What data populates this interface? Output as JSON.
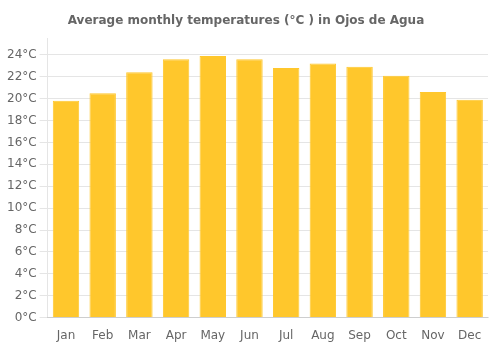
{
  "chart_data": {
    "type": "bar",
    "title": "Average monthly temperatures (°C ) in Ojos de Agua",
    "categories": [
      "Jan",
      "Feb",
      "Mar",
      "Apr",
      "May",
      "Jun",
      "Jul",
      "Aug",
      "Sep",
      "Oct",
      "Nov",
      "Dec"
    ],
    "values": [
      19.8,
      20.5,
      22.4,
      23.6,
      23.9,
      23.6,
      22.8,
      23.2,
      22.9,
      22.1,
      20.6,
      19.9
    ],
    "color": "#FFC72C",
    "ylim": [
      0,
      25.5
    ],
    "yticks": [
      {
        "value": 0,
        "label": "0°C"
      },
      {
        "value": 2,
        "label": "2°C"
      },
      {
        "value": 4,
        "label": "4°C"
      },
      {
        "value": 6,
        "label": "6°C"
      },
      {
        "value": 8,
        "label": "8°C"
      },
      {
        "value": 10,
        "label": "10°C"
      },
      {
        "value": 12,
        "label": "12°C"
      },
      {
        "value": 14,
        "label": "14°C"
      },
      {
        "value": 16,
        "label": "16°C"
      },
      {
        "value": 18,
        "label": "18°C"
      },
      {
        "value": 20,
        "label": "20°C"
      },
      {
        "value": 22,
        "label": "22°C"
      },
      {
        "value": 24,
        "label": "24°C"
      }
    ],
    "grid": true
  }
}
